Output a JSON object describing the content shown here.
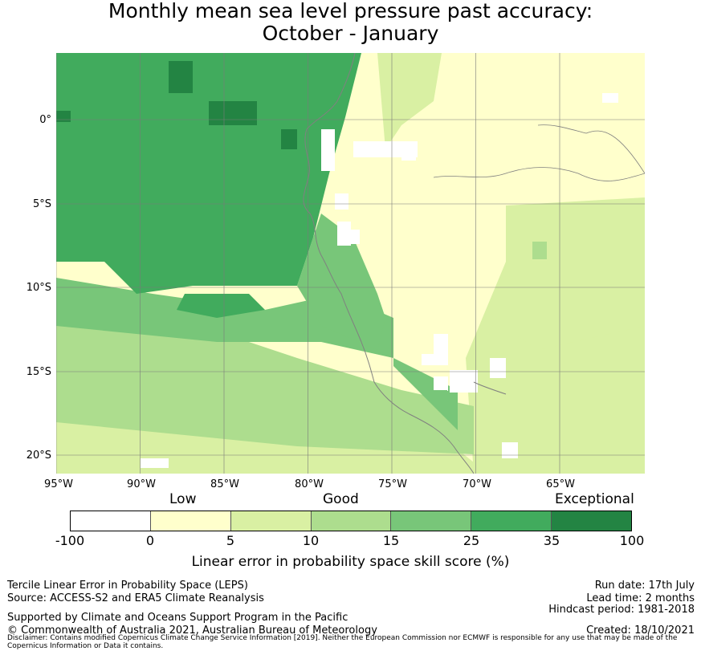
{
  "title": {
    "line1": "Monthly mean sea level pressure past accuracy:",
    "line2": "October - January"
  },
  "map": {
    "lat_ticks": [
      "0°",
      "5°S",
      "10°S",
      "15°S",
      "20°S"
    ],
    "lon_ticks": [
      "95°W",
      "90°W",
      "85°W",
      "80°W",
      "75°W",
      "70°W",
      "65°W"
    ],
    "extent": {
      "lon_min": -95,
      "lon_max": -60,
      "lat_min": -21,
      "lat_max": 4
    }
  },
  "colorbar": {
    "categories": [
      "Low",
      "Good",
      "Exceptional"
    ],
    "ticks": [
      "-100",
      "0",
      "5",
      "10",
      "15",
      "25",
      "35",
      "100"
    ],
    "colors": [
      "#ffffff",
      "#ffffcc",
      "#d9f0a3",
      "#addd8e",
      "#78c679",
      "#41ab5d",
      "#238443"
    ],
    "label": "Linear error in probability space skill score (%)"
  },
  "footer": {
    "left1": "Tercile Linear Error in Probability Space (LEPS)",
    "left2": "Source: ACCESS-S2 and ERA5 Climate Reanalysis",
    "left3": "Supported by Climate and Oceans Support Program in the Pacific",
    "left4": "© Commonwealth of Australia 2021, Australian Bureau of Meteorology",
    "right1": "Run date: 17th July",
    "right2": "Lead time: 2 months",
    "right3": "Hindcast period: 1981-2018",
    "right4": "Created: 18/10/2021",
    "disclaimer": "Disclaimer: Contains modified Copernicus Climate Change Service Information [2019]. Neither the European Commission nor ECMWF is responsible for any use that may be made of the Copernicus Information or Data it contains."
  }
}
